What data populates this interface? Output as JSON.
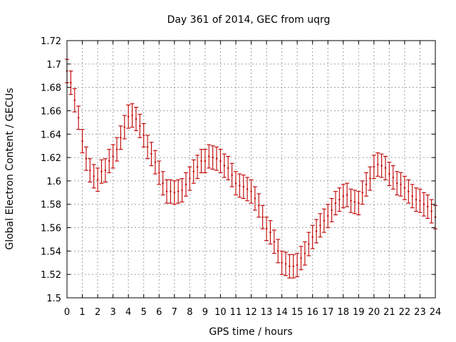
{
  "chart_data": {
    "type": "scatter",
    "title": "Day 361 of 2014, GEC from uqrg",
    "xlabel": "GPS time / hours",
    "ylabel": "Global Electron Content / GECUs",
    "xlim": [
      0,
      24
    ],
    "ylim": [
      1.5,
      1.72
    ],
    "xticks": [
      "0",
      "1",
      "2",
      "3",
      "4",
      "5",
      "6",
      "7",
      "8",
      "9",
      "10",
      "11",
      "12",
      "13",
      "14",
      "15",
      "16",
      "17",
      "18",
      "19",
      "20",
      "21",
      "22",
      "23",
      "24"
    ],
    "yticks": [
      "1.5",
      "1.52",
      "1.54",
      "1.56",
      "1.58",
      "1.6",
      "1.62",
      "1.64",
      "1.66",
      "1.68",
      "1.7",
      "1.72"
    ],
    "grid": true,
    "error_half_width": 0.01,
    "series": [
      {
        "color": "#c00000",
        "x": [
          0,
          0.25,
          0.5,
          0.75,
          1,
          1.25,
          1.5,
          1.75,
          2,
          2.25,
          2.5,
          2.75,
          3,
          3.25,
          3.5,
          3.75,
          4,
          4.25,
          4.5,
          4.75,
          5,
          5.25,
          5.5,
          5.75,
          6,
          6.25,
          6.5,
          6.75,
          7,
          7.25,
          7.5,
          7.75,
          8,
          8.25,
          8.5,
          8.75,
          9,
          9.25,
          9.5,
          9.75,
          10,
          10.25,
          10.5,
          10.75,
          11,
          11.25,
          11.5,
          11.75,
          12,
          12.25,
          12.5,
          12.75,
          13,
          13.25,
          13.5,
          13.75,
          14,
          14.25,
          14.5,
          14.75,
          15,
          15.25,
          15.5,
          15.75,
          16,
          16.25,
          16.5,
          16.75,
          17,
          17.25,
          17.5,
          17.75,
          18,
          18.25,
          18.5,
          18.75,
          19,
          19.25,
          19.5,
          19.75,
          20,
          20.25,
          20.5,
          20.75,
          21,
          21.25,
          21.5,
          21.75,
          22,
          22.25,
          22.5,
          22.75,
          23,
          23.25,
          23.5,
          23.75,
          24
        ],
        "y": [
          1.694,
          1.684,
          1.669,
          1.654,
          1.634,
          1.619,
          1.609,
          1.604,
          1.601,
          1.608,
          1.609,
          1.617,
          1.621,
          1.627,
          1.637,
          1.646,
          1.655,
          1.656,
          1.653,
          1.647,
          1.639,
          1.629,
          1.623,
          1.616,
          1.607,
          1.598,
          1.591,
          1.591,
          1.59,
          1.591,
          1.592,
          1.597,
          1.602,
          1.608,
          1.612,
          1.617,
          1.617,
          1.621,
          1.62,
          1.619,
          1.617,
          1.613,
          1.611,
          1.605,
          1.598,
          1.596,
          1.595,
          1.593,
          1.591,
          1.585,
          1.579,
          1.569,
          1.559,
          1.556,
          1.548,
          1.54,
          1.53,
          1.529,
          1.527,
          1.527,
          1.528,
          1.534,
          1.538,
          1.546,
          1.552,
          1.557,
          1.562,
          1.566,
          1.57,
          1.575,
          1.581,
          1.584,
          1.587,
          1.588,
          1.583,
          1.582,
          1.581,
          1.59,
          1.597,
          1.602,
          1.612,
          1.614,
          1.613,
          1.611,
          1.606,
          1.603,
          1.598,
          1.597,
          1.594,
          1.591,
          1.587,
          1.584,
          1.583,
          1.58,
          1.578,
          1.574,
          1.569
        ]
      }
    ]
  }
}
